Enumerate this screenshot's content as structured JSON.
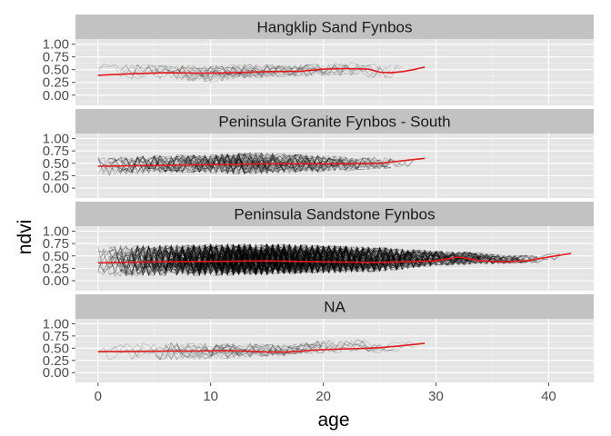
{
  "chart_data": {
    "type": "line",
    "xlabel": "age",
    "ylabel": "ndvi",
    "xlim": [
      -2,
      44
    ],
    "ylim": [
      -0.2,
      1.1
    ],
    "x_ticks": [
      0,
      10,
      20,
      30,
      40
    ],
    "x_tick_labels": [
      "0",
      "10",
      "20",
      "30",
      "40"
    ],
    "y_ticks": [
      0,
      0.25,
      0.5,
      0.75,
      1.0
    ],
    "y_tick_labels": [
      "0.00",
      "0.25",
      "0.50",
      "0.75",
      "1.00"
    ],
    "grid": true,
    "colors": {
      "panel_bg": "#e5e5e5",
      "strip_bg": "#c2c2c2",
      "grid_major": "#ffffff",
      "grid_minor": "#f2f2f2",
      "raw_lines": "#000000",
      "trend": "#e31a1c"
    },
    "panels": [
      {
        "label": "Hangklip Sand Fynbos",
        "density": "low",
        "raw_x_max": 29,
        "band": {
          "x": [
            0,
            5,
            10,
            13,
            17,
            20,
            23,
            25,
            27,
            29
          ],
          "lower": [
            0.3,
            0.32,
            0.25,
            0.33,
            0.35,
            0.38,
            0.36,
            0.3,
            0.38,
            0.4
          ],
          "upper": [
            0.62,
            0.6,
            0.58,
            0.62,
            0.6,
            0.62,
            0.66,
            0.6,
            0.62,
            0.65
          ]
        },
        "trend": {
          "x": [
            0,
            3,
            6,
            9,
            12,
            15,
            18,
            20,
            22,
            24,
            25,
            26,
            27,
            28,
            29
          ],
          "y": [
            0.39,
            0.42,
            0.44,
            0.43,
            0.44,
            0.46,
            0.47,
            0.51,
            0.52,
            0.51,
            0.45,
            0.44,
            0.46,
            0.5,
            0.55
          ]
        }
      },
      {
        "label": "Peninsula Granite Fynbos - South",
        "density": "medium",
        "raw_x_max": 29,
        "band": {
          "x": [
            0,
            5,
            10,
            13,
            17,
            20,
            23,
            25,
            27,
            29
          ],
          "lower": [
            0.25,
            0.3,
            0.3,
            0.28,
            0.3,
            0.32,
            0.36,
            0.38,
            0.42,
            0.45
          ],
          "upper": [
            0.64,
            0.66,
            0.68,
            0.72,
            0.7,
            0.66,
            0.62,
            0.62,
            0.64,
            0.66
          ]
        },
        "trend": {
          "x": [
            0,
            3,
            6,
            9,
            12,
            15,
            18,
            20,
            22,
            25,
            27,
            29
          ],
          "y": [
            0.44,
            0.45,
            0.46,
            0.47,
            0.48,
            0.49,
            0.49,
            0.49,
            0.49,
            0.5,
            0.55,
            0.6
          ]
        }
      },
      {
        "label": "Peninsula Sandstone Fynbos",
        "density": "high",
        "raw_x_max": 42,
        "band": {
          "x": [
            0,
            5,
            10,
            15,
            20,
            25,
            30,
            33,
            36,
            39,
            42
          ],
          "lower": [
            0.08,
            0.1,
            0.1,
            0.12,
            0.15,
            0.18,
            0.3,
            0.32,
            0.34,
            0.36,
            0.45
          ],
          "upper": [
            0.7,
            0.72,
            0.74,
            0.75,
            0.72,
            0.68,
            0.6,
            0.58,
            0.52,
            0.52,
            0.6
          ]
        },
        "trend": {
          "x": [
            0,
            5,
            10,
            15,
            20,
            25,
            30,
            32,
            34,
            36,
            38,
            40,
            42
          ],
          "y": [
            0.36,
            0.38,
            0.39,
            0.4,
            0.38,
            0.37,
            0.4,
            0.48,
            0.4,
            0.38,
            0.4,
            0.48,
            0.55
          ]
        }
      },
      {
        "label": "NA",
        "density": "low",
        "raw_x_max": 29,
        "band": {
          "x": [
            0,
            5,
            10,
            13,
            17,
            20,
            23,
            25,
            27,
            29
          ],
          "lower": [
            0.25,
            0.26,
            0.28,
            0.3,
            0.34,
            0.38,
            0.42,
            0.4,
            0.44,
            0.5
          ],
          "upper": [
            0.6,
            0.62,
            0.6,
            0.6,
            0.58,
            0.66,
            0.68,
            0.62,
            0.64,
            0.66
          ]
        },
        "trend": {
          "x": [
            0,
            3,
            6,
            9,
            11,
            13,
            15,
            17,
            19,
            21,
            23,
            25,
            27,
            29
          ],
          "y": [
            0.43,
            0.43,
            0.44,
            0.44,
            0.45,
            0.44,
            0.42,
            0.42,
            0.46,
            0.48,
            0.49,
            0.51,
            0.55,
            0.6
          ]
        }
      }
    ]
  }
}
